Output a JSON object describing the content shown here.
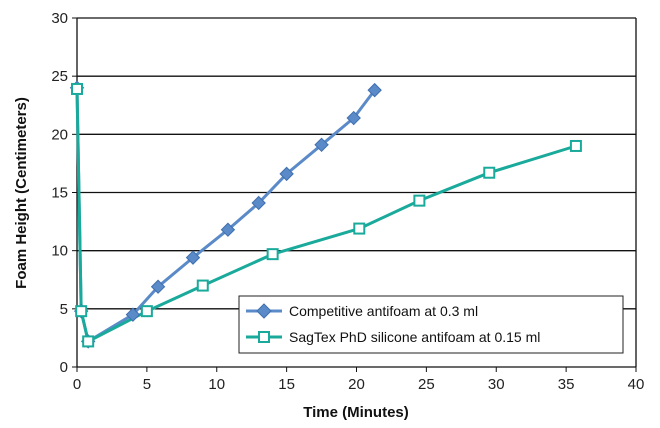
{
  "chart_data": {
    "type": "line",
    "title": "",
    "xlabel": "Time (Minutes)",
    "ylabel": "Foam Height (Centimeters)",
    "xlim": [
      0,
      40
    ],
    "ylim": [
      0,
      30
    ],
    "x_ticks": [
      "0",
      "5",
      "10",
      "15",
      "20",
      "25",
      "30",
      "35",
      "40"
    ],
    "y_ticks": [
      "0",
      "5",
      "10",
      "15",
      "20",
      "25",
      "30"
    ],
    "grid": "horizontal",
    "legend_position": "bottom-right",
    "series": [
      {
        "name": "Competitive antifoam at 0.3 ml",
        "color": "#5b8ac9",
        "marker": "diamond",
        "x": [
          0.0,
          0.3,
          0.8,
          4.0,
          5.8,
          8.3,
          10.8,
          13.0,
          15.0,
          17.5,
          19.8,
          21.3
        ],
        "y": [
          24.0,
          4.8,
          2.2,
          4.5,
          6.9,
          9.4,
          11.8,
          14.1,
          16.6,
          19.1,
          21.4,
          23.8
        ]
      },
      {
        "name": "SagTex PhD silicone antifoam at 0.15 ml",
        "color": "#1aaa9b",
        "marker": "square-open",
        "x": [
          0.0,
          0.3,
          0.8,
          5.0,
          9.0,
          14.0,
          20.2,
          24.5,
          29.5,
          35.7
        ],
        "y": [
          23.9,
          4.8,
          2.2,
          4.8,
          7.0,
          9.7,
          11.9,
          14.3,
          16.7,
          19.0
        ]
      }
    ]
  }
}
